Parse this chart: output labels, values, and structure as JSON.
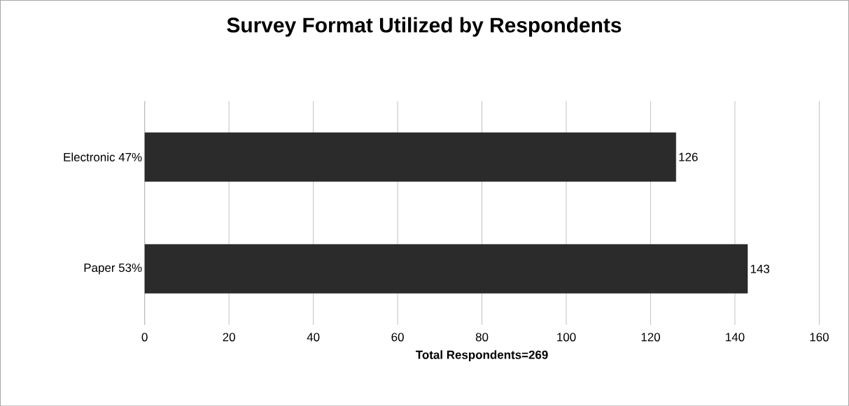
{
  "chart_data": {
    "type": "bar",
    "orientation": "horizontal",
    "title": "Survey Format Utilized by Respondents",
    "xlabel": "Total Respondents=269",
    "categories": [
      "Electronic 47%",
      "Paper 53%"
    ],
    "values": [
      126,
      143
    ],
    "color": "#2b2b2b",
    "xlim": [
      0,
      160
    ],
    "xticks": [
      0,
      20,
      40,
      60,
      80,
      100,
      120,
      140,
      160
    ],
    "grid": "x",
    "data_labels": true
  }
}
